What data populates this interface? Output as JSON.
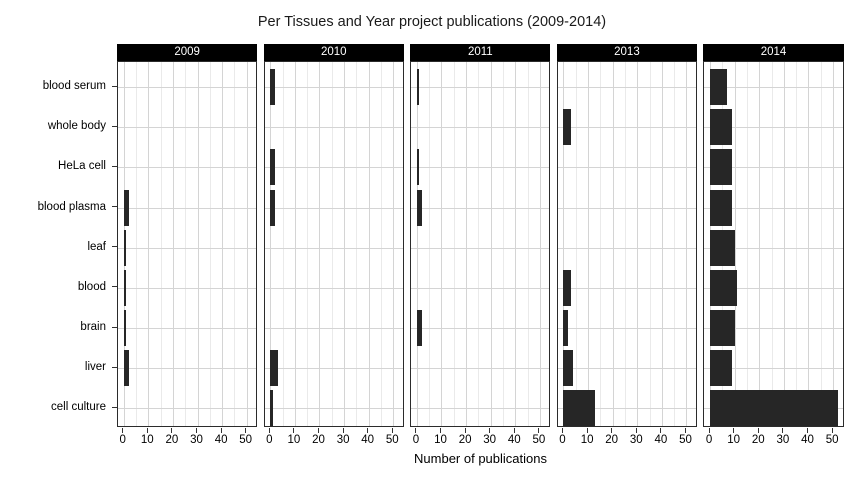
{
  "chart_data": {
    "type": "bar",
    "orientation": "horizontal",
    "title": "Per Tissues and Year project publications (2009-2014)",
    "xlabel": "Number of publications",
    "categories": [
      "blood serum",
      "whole body",
      "HeLa cell",
      "blood plasma",
      "leaf",
      "blood",
      "brain",
      "liver",
      "cell culture"
    ],
    "facets": [
      {
        "year": "2009",
        "values": [
          0,
          0,
          0,
          2,
          1,
          1,
          1,
          2,
          0
        ]
      },
      {
        "year": "2010",
        "values": [
          2,
          0,
          2,
          2,
          0,
          0,
          0,
          3,
          1
        ]
      },
      {
        "year": "2011",
        "values": [
          1,
          0,
          1,
          2,
          0,
          0,
          2,
          0,
          0
        ]
      },
      {
        "year": "2013",
        "values": [
          0,
          3,
          0,
          0,
          0,
          3,
          2,
          4,
          13
        ]
      },
      {
        "year": "2014",
        "values": [
          7,
          9,
          9,
          9,
          10,
          11,
          10,
          9,
          52
        ]
      }
    ],
    "x_ticks": [
      0,
      10,
      20,
      30,
      40,
      50
    ],
    "x_minor_ticks": [
      5,
      15,
      25,
      35,
      45
    ],
    "xlim": [
      0,
      55
    ],
    "grid": "major-and-minor",
    "legend": "none",
    "colors": {
      "bar_fill": "#262626",
      "strip_bg": "#000000",
      "strip_text": "#ffffff",
      "panel_border": "#2b2b2b",
      "grid_major": "#d4d4d4",
      "grid_minor": "#eaeaea",
      "axis_text": "#000000",
      "background": "#ffffff"
    }
  }
}
